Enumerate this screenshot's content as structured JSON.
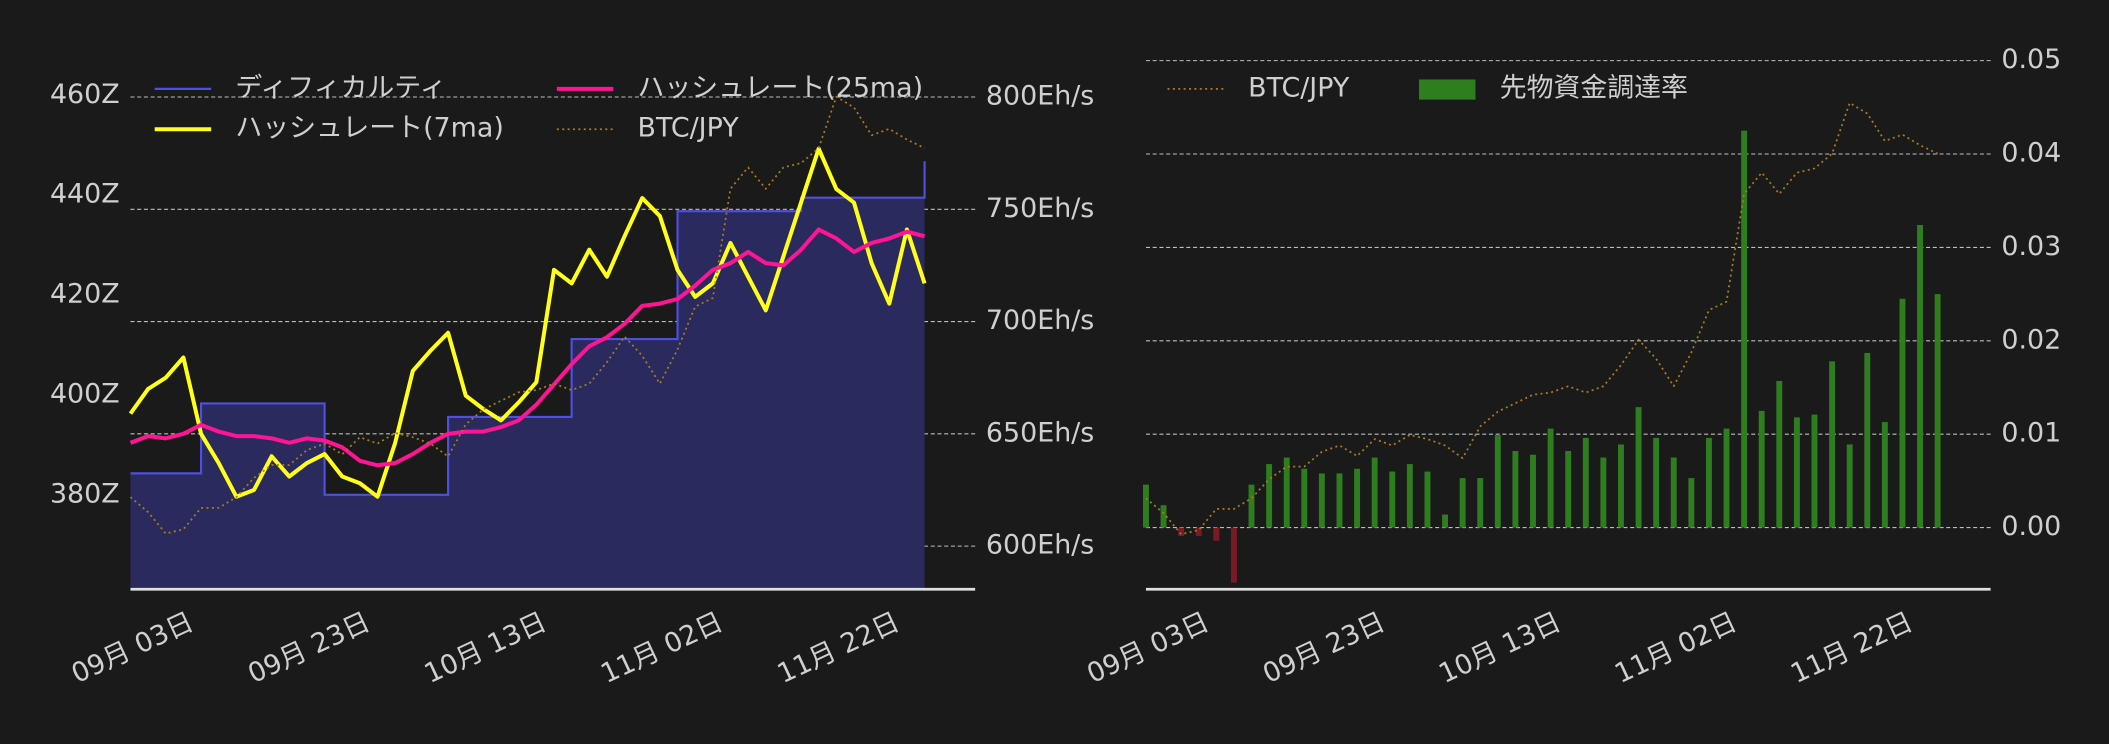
{
  "chart_data": [
    {
      "type": "line",
      "categories": [
        "09月 03日",
        null,
        null,
        null,
        null,
        null,
        null,
        null,
        null,
        null,
        "09月 23日",
        null,
        null,
        null,
        null,
        null,
        null,
        null,
        null,
        null,
        "10月 13日",
        null,
        null,
        null,
        null,
        null,
        null,
        null,
        null,
        null,
        "11月 02日",
        null,
        null,
        null,
        null,
        null,
        null,
        null,
        null,
        null,
        "11月 22日",
        null,
        null,
        null,
        null,
        null
      ],
      "ylim": [
        361.1,
        468.3
      ],
      "yticks": [
        {
          "value": 380,
          "label": "380Z"
        },
        {
          "value": 400,
          "label": "400Z"
        },
        {
          "value": 420,
          "label": "420Z"
        },
        {
          "value": 440,
          "label": "440Z"
        },
        {
          "value": 460,
          "label": "460Z"
        }
      ],
      "y2lim": [
        580.8,
        819.2
      ],
      "y2ticks": [
        {
          "value": 600,
          "label": "600Eh/s"
        },
        {
          "value": 650,
          "label": "650Eh/s"
        },
        {
          "value": 700,
          "label": "700Eh/s"
        },
        {
          "value": 750,
          "label": "750Eh/s"
        },
        {
          "value": 800,
          "label": "800Eh/s"
        }
      ],
      "y3lim": [
        3500000,
        6000000
      ],
      "grid_axis": "y2",
      "y_side": "left",
      "series": [
        {
          "name": "ディフィカルティ",
          "color": "#4f4fe0",
          "fill": "#2a2a5e",
          "style": "step-area",
          "axis": "y",
          "values": [
            384.3,
            384.3,
            384.3,
            384.3,
            398.3,
            398.3,
            398.3,
            398.3,
            398.3,
            398.3,
            398.3,
            380.0,
            380.0,
            380.0,
            380.0,
            380.0,
            380.0,
            380.0,
            395.6,
            395.6,
            395.6,
            395.6,
            395.6,
            395.6,
            395.6,
            411.2,
            411.2,
            411.2,
            411.2,
            411.2,
            411.2,
            436.8,
            436.8,
            436.8,
            436.8,
            436.8,
            436.8,
            436.8,
            439.5,
            439.5,
            439.5,
            439.5,
            439.5,
            439.5,
            439.5,
            446.8
          ]
        },
        {
          "name": "ハッシュレート(7ma)",
          "color": "#ffff1a",
          "style": "line",
          "axis": "y2",
          "values": [
            659,
            670,
            675,
            684,
            650,
            637,
            622,
            625,
            640,
            631,
            637,
            641,
            631,
            628,
            622,
            646,
            678,
            687,
            695,
            667,
            661,
            656,
            664,
            673,
            723,
            717,
            732,
            720,
            738,
            755,
            747,
            723,
            711,
            717,
            735,
            720,
            705,
            729,
            753,
            777,
            759,
            753,
            726,
            708,
            741,
            717
          ]
        },
        {
          "name": "ハッシュレート(25ma)",
          "color": "#ff1493",
          "style": "line",
          "axis": "y2",
          "values": [
            646,
            649,
            648,
            650,
            654,
            651,
            649,
            649,
            648,
            646,
            648,
            647,
            644,
            638,
            636,
            637,
            641,
            646,
            650,
            651,
            651,
            653,
            656,
            663,
            672,
            681,
            689,
            693,
            699,
            707,
            708,
            710,
            716,
            723,
            726,
            731,
            726,
            725,
            732,
            741,
            737,
            731,
            735,
            737,
            740,
            738
          ]
        },
        {
          "name": "BTC/JPY",
          "color": "#a67c1e",
          "style": "dotted",
          "axis": "y3",
          "values": [
            3930000,
            3860000,
            3760000,
            3780000,
            3880000,
            3880000,
            3930000,
            4020000,
            4080000,
            4080000,
            4150000,
            4180000,
            4130000,
            4210000,
            4180000,
            4230000,
            4210000,
            4180000,
            4120000,
            4270000,
            4340000,
            4380000,
            4420000,
            4430000,
            4460000,
            4430000,
            4460000,
            4560000,
            4680000,
            4590000,
            4460000,
            4620000,
            4820000,
            4860000,
            5370000,
            5470000,
            5370000,
            5470000,
            5490000,
            5560000,
            5800000,
            5750000,
            5620000,
            5650000,
            5600000,
            5560000
          ]
        }
      ]
    },
    {
      "type": "bar",
      "categories": [
        "09月 03日",
        null,
        null,
        null,
        null,
        null,
        null,
        null,
        null,
        null,
        "09月 23日",
        null,
        null,
        null,
        null,
        null,
        null,
        null,
        null,
        null,
        "10月 13日",
        null,
        null,
        null,
        null,
        null,
        null,
        null,
        null,
        null,
        "11月 02日",
        null,
        null,
        null,
        null,
        null,
        null,
        null,
        null,
        null,
        "11月 22日",
        null,
        null,
        null,
        null,
        null
      ],
      "ylim": [
        -0.0066,
        0.05
      ],
      "yticks": [
        {
          "value": 0,
          "label": "0.00"
        },
        0.01,
        0.02,
        0.03,
        0.04,
        0.05
      ],
      "y3lim": [
        3500000,
        6000000
      ],
      "grid_axis": "y",
      "y_side": "right",
      "series": [
        {
          "name": "BTC/JPY",
          "color": "#a67c1e",
          "style": "dotted",
          "axis": "y3",
          "values": [
            3930000,
            3860000,
            3760000,
            3780000,
            3880000,
            3880000,
            3930000,
            4020000,
            4080000,
            4080000,
            4150000,
            4180000,
            4130000,
            4210000,
            4180000,
            4230000,
            4210000,
            4180000,
            4120000,
            4270000,
            4340000,
            4380000,
            4420000,
            4430000,
            4460000,
            4430000,
            4460000,
            4560000,
            4680000,
            4590000,
            4460000,
            4620000,
            4820000,
            4860000,
            5370000,
            5470000,
            5370000,
            5470000,
            5490000,
            5560000,
            5800000,
            5750000,
            5620000,
            5650000,
            5600000,
            5560000
          ]
        },
        {
          "name": "先物資金調達率",
          "color": "#2e7d1e",
          "negative_color": "#7a1a24",
          "style": "bar",
          "axis": "y",
          "values": [
            0.0046,
            0.0024,
            -0.0009,
            -0.0009,
            -0.0014,
            -0.0059,
            0.0046,
            0.0068,
            0.0075,
            0.0063,
            0.0058,
            0.0058,
            0.0063,
            0.0075,
            0.006,
            0.0068,
            0.006,
            0.0014,
            0.0053,
            0.0053,
            0.0099,
            0.0082,
            0.0078,
            0.0106,
            0.0082,
            0.0096,
            0.0075,
            0.0089,
            0.0129,
            0.0096,
            0.0075,
            0.0053,
            0.0096,
            0.0106,
            0.0425,
            0.0125,
            0.0157,
            0.0118,
            0.0121,
            0.0178,
            0.0089,
            0.0187,
            0.0113,
            0.0245,
            0.0324,
            0.025
          ]
        }
      ]
    }
  ]
}
